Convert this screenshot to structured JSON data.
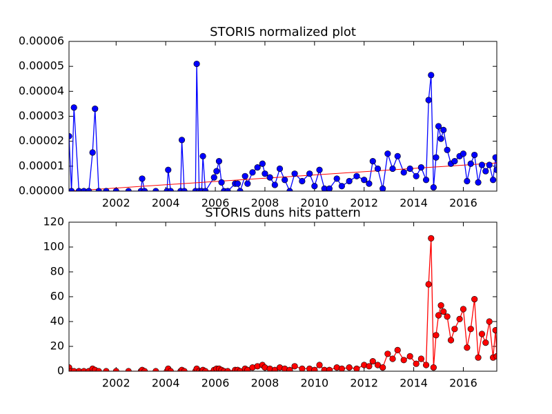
{
  "chart_data": [
    {
      "type": "line",
      "title": "STORIS normalized plot",
      "x": [
        2000.1,
        2000.2,
        2000.3,
        2000.5,
        2000.7,
        2000.9,
        2001.05,
        2001.15,
        2001.3,
        2001.6,
        2002,
        2002.5,
        2003,
        2003.05,
        2003.15,
        2003.6,
        2004.05,
        2004.1,
        2004.2,
        2004.6,
        2004.65,
        2004.75,
        2005.2,
        2005.25,
        2005.35,
        2005.45,
        2005.5,
        2005.6,
        2005.95,
        2006.05,
        2006.15,
        2006.25,
        2006.35,
        2006.5,
        2006.8,
        2006.9,
        2007.0,
        2007.2,
        2007.3,
        2007.5,
        2007.7,
        2007.9,
        2008.0,
        2008.2,
        2008.4,
        2008.6,
        2008.8,
        2009.0,
        2009.2,
        2009.5,
        2009.8,
        2010.0,
        2010.2,
        2010.4,
        2010.6,
        2010.9,
        2011.1,
        2011.4,
        2011.7,
        2012.0,
        2012.2,
        2012.35,
        2012.55,
        2012.75,
        2012.95,
        2013.15,
        2013.35,
        2013.6,
        2013.85,
        2014.1,
        2014.3,
        2014.5,
        2014.6,
        2014.7,
        2014.8,
        2014.9,
        2015.0,
        2015.1,
        2015.2,
        2015.35,
        2015.5,
        2015.65,
        2015.85,
        2016.0,
        2016.15,
        2016.3,
        2016.45,
        2016.6,
        2016.75,
        2016.9,
        2017.05,
        2017.2,
        2017.3,
        2017.35
      ],
      "values": [
        2.2e-05,
        0,
        3.35e-05,
        0,
        0,
        0,
        1.55e-05,
        3.3e-05,
        0,
        0,
        0,
        0,
        0,
        5e-06,
        0,
        0,
        0,
        8.5e-06,
        0,
        0,
        2.05e-05,
        0,
        0,
        5.1e-05,
        0,
        0,
        1.4e-05,
        0,
        5.5e-06,
        8e-06,
        1.2e-05,
        3.5e-06,
        0,
        0,
        3e-06,
        3e-06,
        0,
        6e-06,
        3e-06,
        7.5e-06,
        9.5e-06,
        1.1e-05,
        7e-06,
        5.5e-06,
        2.5e-06,
        9e-06,
        4.5e-06,
        0,
        7e-06,
        4e-06,
        7e-06,
        2e-06,
        8.5e-06,
        1e-06,
        1e-06,
        5e-06,
        2e-06,
        4e-06,
        6e-06,
        4.5e-06,
        3e-06,
        1.2e-05,
        9e-06,
        1e-06,
        1.5e-05,
        9e-06,
        1.4e-05,
        7.5e-06,
        9e-06,
        6e-06,
        9.5e-06,
        4.5e-06,
        3.65e-05,
        4.65e-05,
        1.5e-06,
        1.35e-05,
        2.6e-05,
        2.1e-05,
        2.45e-05,
        1.65e-05,
        1.1e-05,
        1.2e-05,
        1.4e-05,
        1.5e-05,
        4e-06,
        1.1e-05,
        1.45e-05,
        3.5e-06,
        1.05e-05,
        8e-06,
        1.05e-05,
        4.5e-06,
        1.35e-05,
        8.5e-06
      ],
      "color": "#0000ff",
      "trend": {
        "x": [
          2000.1,
          2017.35
        ],
        "values": [
          0,
          1.13e-05
        ],
        "color": "#ff0000"
      },
      "xlim": [
        2000.1,
        2017.35
      ],
      "xticks": [
        2002,
        2004,
        2006,
        2008,
        2010,
        2012,
        2014,
        2016
      ],
      "ylim": [
        0,
        6e-05
      ],
      "yticks": [
        {
          "value": 0,
          "label": "0.00000"
        },
        {
          "value": 1e-05,
          "label": "0.00001"
        },
        {
          "value": 2e-05,
          "label": "0.00002"
        },
        {
          "value": 3e-05,
          "label": "0.00003"
        },
        {
          "value": 4e-05,
          "label": "0.00004"
        },
        {
          "value": 5e-05,
          "label": "0.00005"
        },
        {
          "value": 6e-05,
          "label": "0.00006"
        }
      ]
    },
    {
      "type": "line",
      "title": "STORIS duns hits pattern",
      "x": [
        2000.1,
        2000.2,
        2000.3,
        2000.5,
        2000.7,
        2000.9,
        2001.05,
        2001.15,
        2001.3,
        2001.6,
        2002,
        2002.5,
        2003,
        2003.05,
        2003.15,
        2003.6,
        2004.05,
        2004.1,
        2004.2,
        2004.6,
        2004.65,
        2004.75,
        2005.2,
        2005.25,
        2005.35,
        2005.45,
        2005.5,
        2005.6,
        2005.95,
        2006.05,
        2006.15,
        2006.25,
        2006.35,
        2006.5,
        2006.8,
        2006.9,
        2007.0,
        2007.2,
        2007.3,
        2007.5,
        2007.7,
        2007.9,
        2008.0,
        2008.2,
        2008.4,
        2008.6,
        2008.8,
        2009.0,
        2009.2,
        2009.5,
        2009.8,
        2010.0,
        2010.2,
        2010.4,
        2010.6,
        2010.9,
        2011.1,
        2011.4,
        2011.7,
        2012.0,
        2012.2,
        2012.35,
        2012.55,
        2012.75,
        2012.95,
        2013.15,
        2013.35,
        2013.6,
        2013.85,
        2014.1,
        2014.3,
        2014.5,
        2014.6,
        2014.7,
        2014.8,
        2014.9,
        2015.0,
        2015.1,
        2015.2,
        2015.35,
        2015.5,
        2015.65,
        2015.85,
        2016.0,
        2016.15,
        2016.3,
        2016.45,
        2016.6,
        2016.75,
        2016.9,
        2017.05,
        2017.2,
        2017.3,
        2017.35
      ],
      "values": [
        3,
        0,
        0,
        0,
        0,
        0,
        2,
        1,
        0,
        0,
        0,
        0,
        0,
        1,
        0,
        0,
        0,
        2,
        0,
        0,
        1,
        0,
        0,
        2,
        0,
        0,
        1,
        0,
        1,
        2,
        2,
        1,
        0,
        0,
        1,
        1,
        0,
        2,
        1,
        3,
        4,
        5,
        3,
        2,
        1,
        3,
        2,
        1,
        4,
        2,
        2,
        1,
        5,
        1,
        1,
        3,
        2,
        3,
        2,
        5,
        4,
        8,
        5,
        3,
        14,
        10,
        17,
        9,
        12,
        6,
        10,
        5,
        70,
        107,
        3,
        29,
        45,
        53,
        48,
        44,
        25,
        34,
        42,
        50,
        19,
        34,
        58,
        11,
        30,
        23,
        40,
        11,
        33,
        12
      ],
      "color": "#ff0000",
      "xlim": [
        2000.1,
        2017.35
      ],
      "xticks": [
        2002,
        2004,
        2006,
        2008,
        2010,
        2012,
        2014,
        2016
      ],
      "ylim": [
        0,
        120
      ],
      "yticks": [
        0,
        20,
        40,
        60,
        80,
        100,
        120
      ]
    }
  ]
}
